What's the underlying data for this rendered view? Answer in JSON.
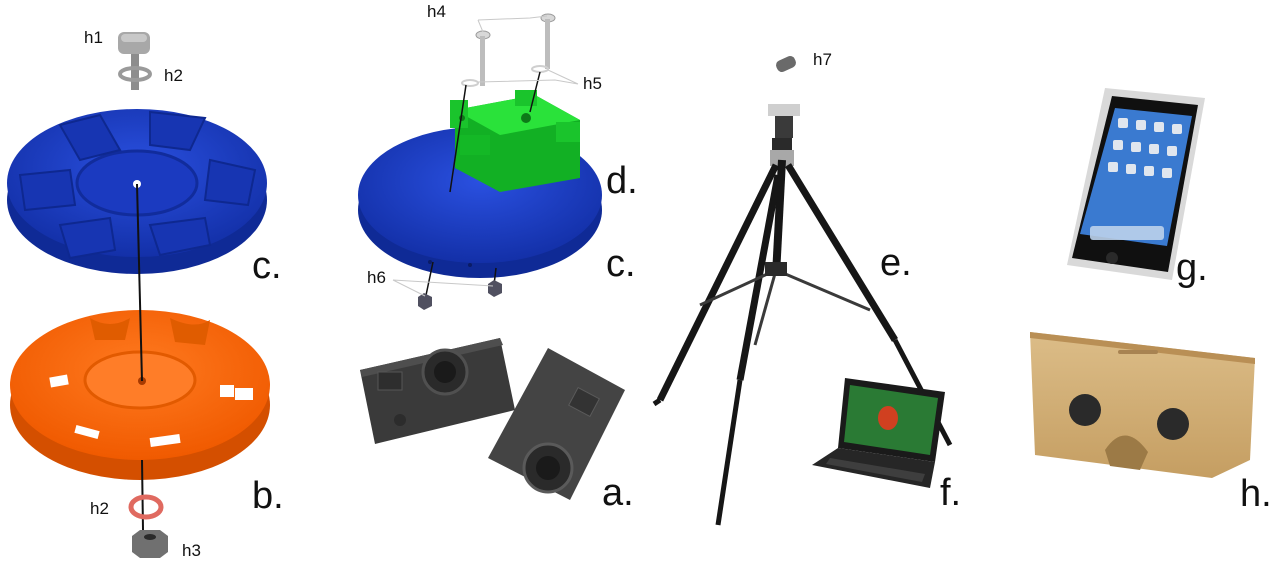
{
  "labels": {
    "a": "a.",
    "b": "b.",
    "c_left": "c.",
    "c_right": "c.",
    "d": "d.",
    "e": "e.",
    "f": "f.",
    "g": "g.",
    "h": "h.",
    "h1": "h1",
    "h2_top": "h2",
    "h2_bottom": "h2",
    "h3": "h3",
    "h4": "h4",
    "h5": "h5",
    "h6": "h6",
    "h7": "h7"
  },
  "colors": {
    "blue_disc": "#1f3fc4",
    "orange_disc": "#ff6a10",
    "green_mount": "#18d02a",
    "camera": "#3a3a3a",
    "tripod": "#1a1a1a",
    "cardboard": "#d2b07a"
  }
}
